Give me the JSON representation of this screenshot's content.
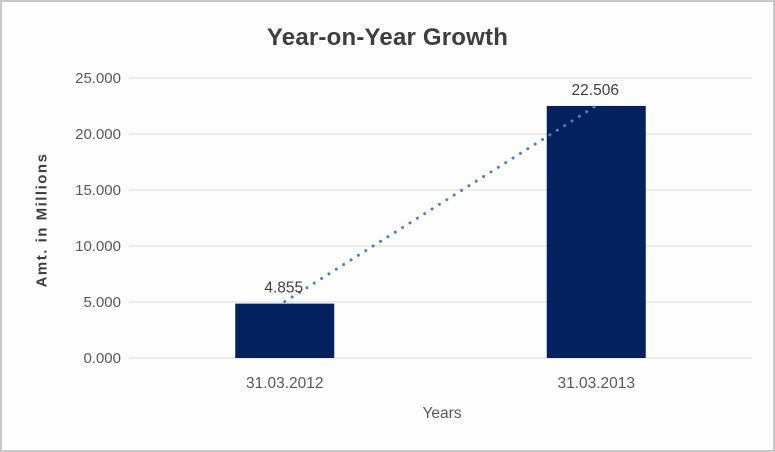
{
  "chart": {
    "title": "Year-on-Year Growth",
    "x_axis_title": "Years",
    "y_axis_title": "Amt. in Millions"
  },
  "chart_data": {
    "type": "bar",
    "title": "Year-on-Year Growth",
    "xlabel": "Years",
    "ylabel": "Amt. in Millions",
    "categories": [
      "31.03.2012",
      "31.03.2013"
    ],
    "values": [
      4.855,
      22.506
    ],
    "data_labels": [
      "4.855",
      "22.506"
    ],
    "ylim": [
      0,
      25
    ],
    "ytick_values": [
      0,
      5,
      10,
      15,
      20,
      25
    ],
    "ytick_labels": [
      "0.000",
      "5.000",
      "10.000",
      "15.000",
      "20.000",
      "25.000"
    ],
    "grid": true,
    "legend": "none",
    "trendline": {
      "style": "dotted",
      "from_category": "31.03.2012",
      "to_category": "31.03.2013"
    },
    "colors": {
      "bar": "#02215E",
      "gridline": "#D9D9D9",
      "trendline": "#4E81C8",
      "title_text": "#3E3E3E",
      "axis_text": "#595959",
      "data_label_text": "#404040",
      "frame_border": "#C8C8C8",
      "background": "#FDFDFD"
    }
  }
}
